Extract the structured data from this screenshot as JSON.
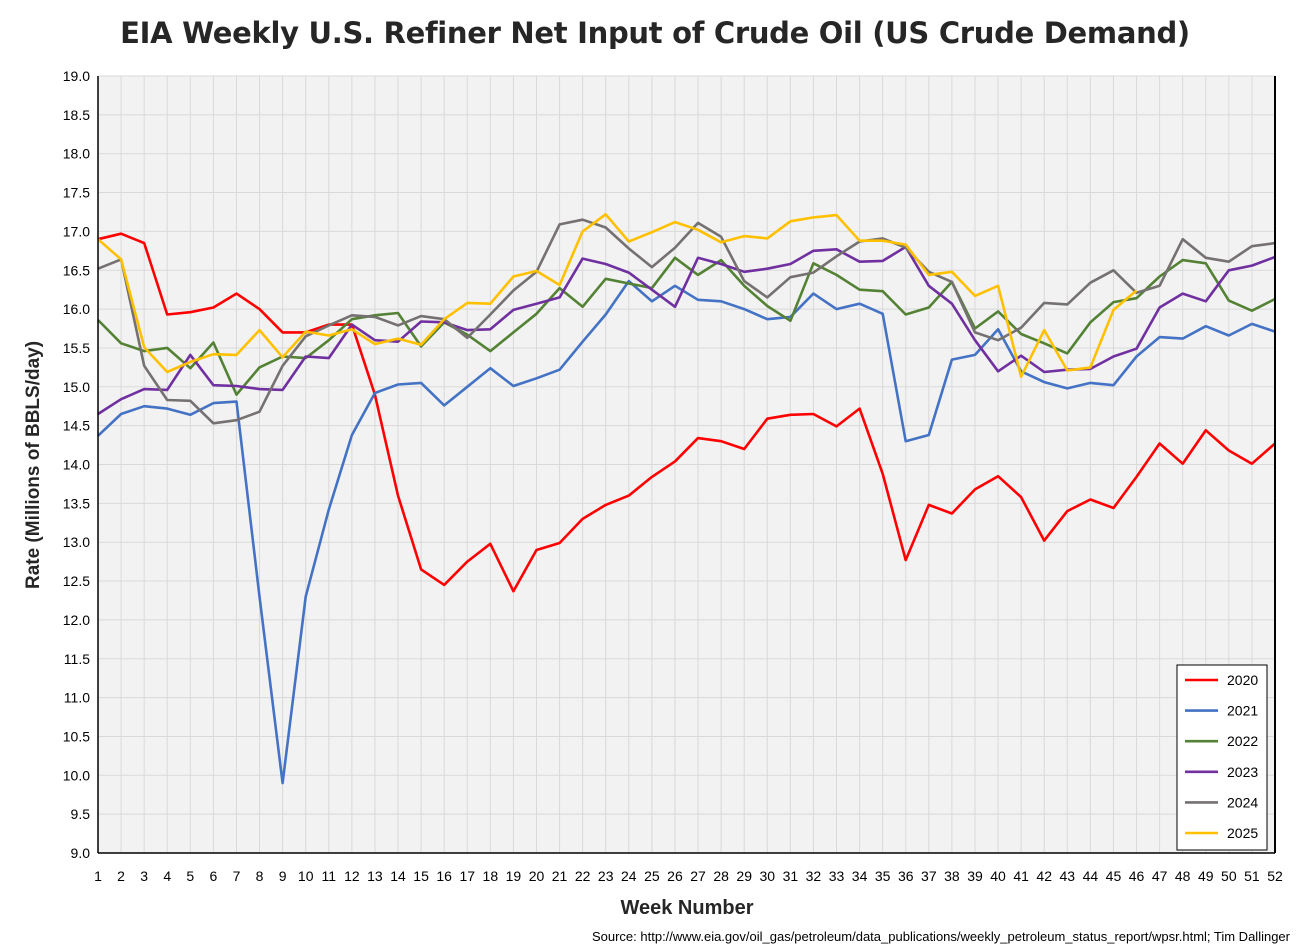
{
  "chart_data": {
    "type": "line",
    "title": "EIA Weekly U.S. Refiner Net Input of Crude Oil (US Crude Demand)",
    "xlabel": "Week Number",
    "ylabel": "Rate (Millions of BBLS/day)",
    "source": "Source: http://www.eia.gov/oil_gas/petroleum/data_publications/weekly_petroleum_status_report/wpsr.html; Tim Dallinger",
    "xlim": [
      1,
      52
    ],
    "ylim": [
      9.0,
      19.0
    ],
    "ytick_step": 0.5,
    "grid": true,
    "legend_position": "bottom-right",
    "series": [
      {
        "name": "2020",
        "color": "#ff0000",
        "values": [
          16.9,
          16.97,
          16.85,
          15.93,
          15.96,
          16.02,
          16.2,
          16.0,
          15.7,
          15.7,
          15.8,
          15.8,
          14.9,
          13.6,
          12.65,
          12.45,
          12.75,
          12.98,
          12.37,
          12.9,
          12.99,
          13.3,
          13.48,
          13.6,
          13.84,
          14.04,
          14.34,
          14.3,
          14.2,
          14.59,
          14.64,
          14.65,
          14.49,
          14.72,
          13.88,
          12.77,
          13.48,
          13.37,
          13.68,
          13.85,
          13.58,
          13.02,
          13.4,
          13.55,
          13.44,
          13.84,
          14.27,
          14.01,
          14.44,
          14.18,
          14.01,
          14.27
        ]
      },
      {
        "name": "2021",
        "color": "#4472c4",
        "values": [
          14.37,
          14.65,
          14.75,
          14.72,
          14.64,
          14.79,
          14.81,
          12.3,
          9.9,
          12.3,
          13.42,
          14.38,
          14.92,
          15.03,
          15.05,
          14.76,
          15.0,
          15.24,
          15.01,
          15.11,
          15.22,
          15.58,
          15.93,
          16.36,
          16.1,
          16.3,
          16.12,
          16.1,
          16.0,
          15.87,
          15.9,
          16.2,
          16.0,
          16.07,
          15.94,
          14.3,
          14.38,
          15.35,
          15.41,
          15.74,
          15.2,
          15.06,
          14.98,
          15.05,
          15.02,
          15.39,
          15.64,
          15.62,
          15.78,
          15.66,
          15.81,
          15.71
        ]
      },
      {
        "name": "2022",
        "color": "#548235",
        "values": [
          15.86,
          15.56,
          15.46,
          15.5,
          15.24,
          15.57,
          14.9,
          15.25,
          15.39,
          15.37,
          15.6,
          15.87,
          15.92,
          15.95,
          15.52,
          15.83,
          15.67,
          15.46,
          15.7,
          15.94,
          16.27,
          16.03,
          16.39,
          16.33,
          16.27,
          16.66,
          16.44,
          16.63,
          16.3,
          16.04,
          15.85,
          16.59,
          16.44,
          16.25,
          16.23,
          15.93,
          16.02,
          16.35,
          15.75,
          15.97,
          15.68,
          15.56,
          15.43,
          15.83,
          16.09,
          16.14,
          16.42,
          16.63,
          16.59,
          16.11,
          15.98,
          16.13
        ]
      },
      {
        "name": "2023",
        "color": "#7030a0",
        "values": [
          14.65,
          14.84,
          14.97,
          14.96,
          15.41,
          15.02,
          15.01,
          14.97,
          14.96,
          15.39,
          15.37,
          15.8,
          15.6,
          15.58,
          15.84,
          15.83,
          15.73,
          15.74,
          15.99,
          16.07,
          16.15,
          16.65,
          16.58,
          16.47,
          16.25,
          16.03,
          16.66,
          16.58,
          16.48,
          16.52,
          16.58,
          16.75,
          16.77,
          16.61,
          16.62,
          16.8,
          16.3,
          16.07,
          15.6,
          15.2,
          15.4,
          15.19,
          15.22,
          15.23,
          15.39,
          15.49,
          16.02,
          16.2,
          16.1,
          16.5,
          16.56,
          16.67
        ]
      },
      {
        "name": "2024",
        "color": "#767171",
        "values": [
          16.52,
          16.64,
          15.27,
          14.83,
          14.82,
          14.53,
          14.57,
          14.68,
          15.27,
          15.65,
          15.79,
          15.92,
          15.9,
          15.79,
          15.91,
          15.87,
          15.63,
          15.93,
          16.24,
          16.48,
          17.09,
          17.15,
          17.05,
          16.78,
          16.54,
          16.79,
          17.11,
          16.93,
          16.36,
          16.15,
          16.41,
          16.47,
          16.68,
          16.87,
          16.91,
          16.79,
          16.48,
          16.35,
          15.7,
          15.6,
          15.76,
          16.08,
          16.06,
          16.34,
          16.5,
          16.21,
          16.3,
          16.9,
          16.66,
          16.61,
          16.81,
          16.85
        ]
      },
      {
        "name": "2025",
        "color": "#ffc000",
        "values": [
          16.9,
          16.64,
          15.51,
          15.19,
          15.32,
          15.42,
          15.41,
          15.73,
          15.38,
          15.71,
          15.66,
          15.74,
          15.55,
          15.62,
          15.54,
          15.87,
          16.08,
          16.07,
          16.42,
          16.49,
          16.31,
          17.0,
          17.22,
          16.87,
          16.99,
          17.12,
          17.02,
          16.86,
          16.94,
          16.91,
          17.13,
          17.18,
          17.21,
          16.88,
          16.88,
          16.83,
          16.44,
          16.48,
          16.17,
          16.3,
          15.13,
          15.73,
          15.21,
          15.25,
          15.99,
          16.24
        ]
      }
    ]
  }
}
